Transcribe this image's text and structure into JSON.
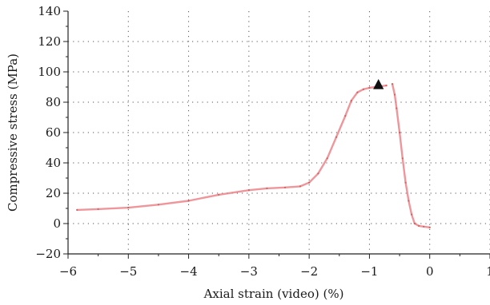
{
  "chart_data": {
    "type": "line",
    "title": "",
    "xlabel": "Axial strain (video) (%)",
    "ylabel": "Compressive stress (MPa)",
    "xlim": [
      -6,
      1
    ],
    "ylim": [
      -20,
      140
    ],
    "xticks": [
      -6,
      -5,
      -4,
      -3,
      -2,
      -1,
      0,
      1
    ],
    "yticks": [
      -20,
      0,
      20,
      40,
      60,
      80,
      100,
      120,
      140
    ],
    "x_tick_labels": [
      "−6",
      "−5",
      "−4",
      "−3",
      "−2",
      "−1",
      "0",
      "1"
    ],
    "y_tick_labels": [
      "−20",
      "0",
      "20",
      "40",
      "60",
      "80",
      "100",
      "120",
      "140"
    ],
    "grid": "dotted",
    "legend": "none",
    "series": [
      {
        "color": "#e8737a",
        "points": [
          [
            -5.85,
            9
          ],
          [
            -5.5,
            9.5
          ],
          [
            -5.0,
            10.5
          ],
          [
            -4.5,
            12.5
          ],
          [
            -4.0,
            15
          ],
          [
            -3.5,
            19
          ],
          [
            -3.0,
            22
          ],
          [
            -2.7,
            23.2
          ],
          [
            -2.4,
            23.8
          ],
          [
            -2.15,
            24.5
          ],
          [
            -2.0,
            27
          ],
          [
            -1.85,
            33
          ],
          [
            -1.7,
            43
          ],
          [
            -1.55,
            57
          ],
          [
            -1.4,
            71
          ],
          [
            -1.3,
            81
          ],
          [
            -1.2,
            86.5
          ],
          [
            -1.1,
            88.5
          ],
          [
            -1.0,
            89.5
          ],
          [
            -0.9,
            90
          ],
          [
            -0.8,
            90.5
          ],
          [
            -0.72,
            91
          ]
        ]
      },
      {
        "color": "#e8737a",
        "points": [
          [
            -0.62,
            92
          ],
          [
            -0.58,
            85
          ],
          [
            -0.55,
            76
          ],
          [
            -0.5,
            60
          ],
          [
            -0.45,
            43
          ],
          [
            -0.4,
            27
          ],
          [
            -0.35,
            15
          ],
          [
            -0.3,
            6
          ],
          [
            -0.25,
            0
          ],
          [
            -0.18,
            -1.5
          ],
          [
            -0.1,
            -2
          ],
          [
            0.0,
            -2.5
          ]
        ]
      }
    ],
    "marker": {
      "shape": "triangle",
      "x": -0.85,
      "y": 91.5,
      "color": "#111111"
    }
  }
}
